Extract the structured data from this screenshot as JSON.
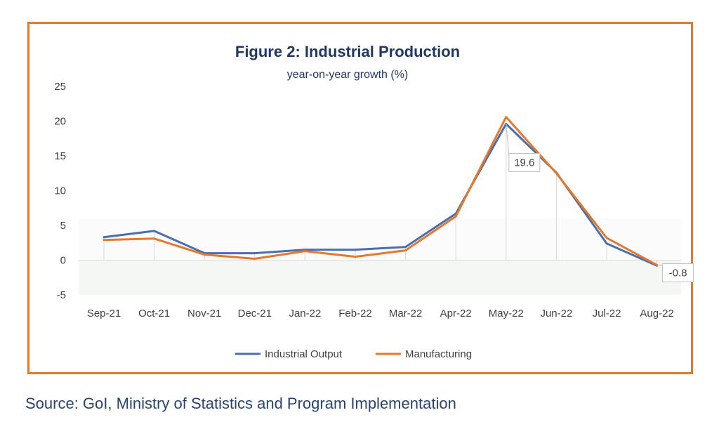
{
  "chart_data": {
    "type": "line",
    "title": "Figure 2: Industrial Production",
    "subtitle": "year-on-year growth (%)",
    "categories": [
      "Sep-21",
      "Oct-21",
      "Nov-21",
      "Dec-21",
      "Jan-22",
      "Feb-22",
      "Mar-22",
      "Apr-22",
      "May-22",
      "Jun-22",
      "Jul-22",
      "Aug-22"
    ],
    "ylim": [
      -5,
      25
    ],
    "yticks": [
      -5,
      0,
      5,
      10,
      15,
      20,
      25
    ],
    "series": [
      {
        "name": "Industrial Output",
        "color": "#4a6fae",
        "values": [
          3.3,
          4.2,
          1.0,
          1.0,
          1.5,
          1.5,
          1.9,
          6.7,
          19.6,
          12.6,
          2.4,
          -0.8
        ]
      },
      {
        "name": "Manufacturing",
        "color": "#e5782b",
        "values": [
          2.9,
          3.1,
          0.8,
          0.2,
          1.3,
          0.5,
          1.4,
          6.3,
          20.6,
          12.5,
          3.2,
          -0.7
        ]
      }
    ],
    "data_labels": [
      {
        "series": "Industrial Output",
        "index": 8,
        "text": "19.6"
      },
      {
        "series": "Industrial Output",
        "index": 11,
        "text": "-0.8"
      }
    ],
    "legend_position": "bottom",
    "grid": false
  },
  "source": "Source: GoI, Ministry of Statistics and Program Implementation",
  "colors": {
    "frame": "#e07b2a",
    "title": "#1f3864",
    "tick_text": "#404040",
    "band_light": "#f4f7f4"
  }
}
